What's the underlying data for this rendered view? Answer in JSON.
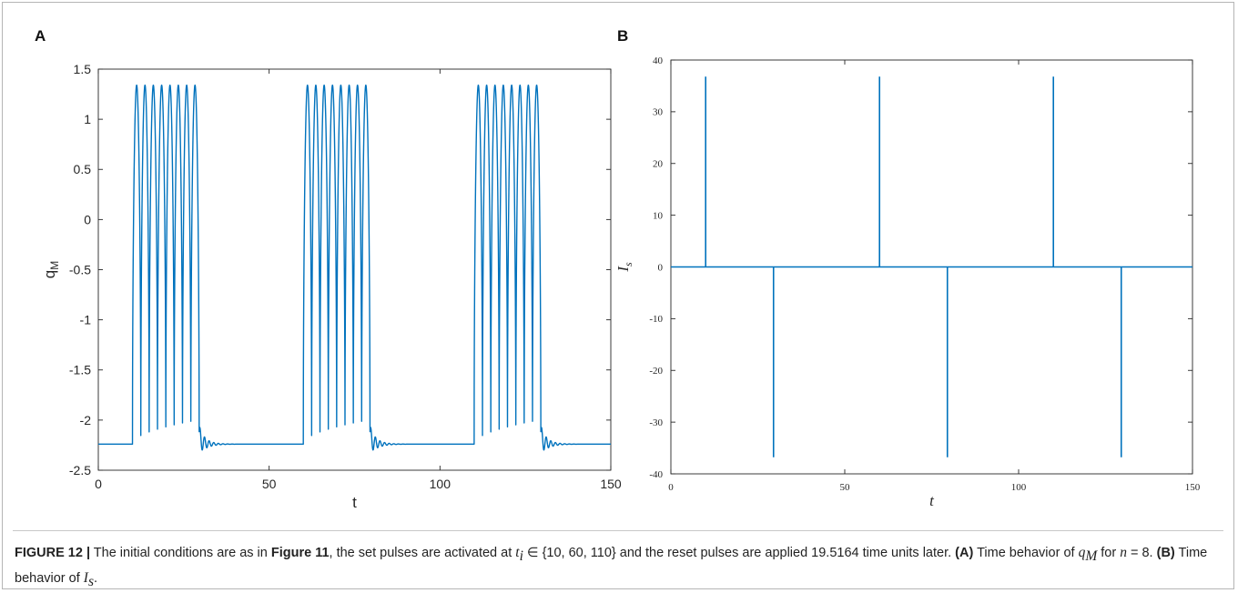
{
  "panels": {
    "a": {
      "letter": "A",
      "chart_data": {
        "type": "line",
        "xlabel": "t",
        "ylabel": "q",
        "ylabel_sub": "M",
        "xlim": [
          0,
          150
        ],
        "ylim": [
          -2.5,
          1.5
        ],
        "x_ticks": [
          "0",
          "50",
          "100",
          "150"
        ],
        "y_ticks": [
          "-2.5",
          "-2",
          "-1.5",
          "-1",
          "-0.5",
          "0",
          "0.5",
          "1",
          "1.5"
        ],
        "series": [
          {
            "color": "#0072BD",
            "baseline": -2.24,
            "peak": 1.34,
            "pulses_per_burst": 8,
            "burst_starts": [
              10,
              60,
              110
            ],
            "burst_duration": 19.5164
          }
        ]
      }
    },
    "b": {
      "letter": "B",
      "chart_data": {
        "type": "line",
        "xlabel": "t",
        "ylabel": "I",
        "ylabel_sub": "s",
        "xlim": [
          0,
          150
        ],
        "ylim": [
          -40,
          40
        ],
        "x_ticks": [
          "0",
          "50",
          "100",
          "150"
        ],
        "y_ticks": [
          "-40",
          "-30",
          "-20",
          "-10",
          "0",
          "10",
          "20",
          "30",
          "40"
        ],
        "series": [
          {
            "color": "#0072BD",
            "baseline": 0,
            "set_pulses": [
              {
                "t": 10,
                "value": 36.8
              },
              {
                "t": 60,
                "value": 36.8
              },
              {
                "t": 110,
                "value": 36.8
              }
            ],
            "reset_pulses": [
              {
                "t": 29.5164,
                "value": -36.8
              },
              {
                "t": 79.5164,
                "value": -36.8
              },
              {
                "t": 129.5164,
                "value": -36.8
              }
            ]
          }
        ]
      }
    }
  },
  "caption": {
    "figure_label": "FIGURE 12 |",
    "p1": " The initial conditions are as in ",
    "ref": "Figure 11",
    "p2": ", the set pulses are activated at ",
    "ti_base": "t",
    "ti_sub": "i",
    "p3": " ∈ {10, 60, 110} and the reset pulses are applied 19.5164 time units later. ",
    "label_a": "(A)",
    "p4": " Time behavior of ",
    "q_base": "q",
    "q_sub": "M",
    "p5": " for ",
    "n_var": "n",
    "p6": " = 8. ",
    "label_b": "(B)",
    "p7": " Time behavior of ",
    "is_base": "I",
    "is_sub": "s",
    "p8": "."
  }
}
